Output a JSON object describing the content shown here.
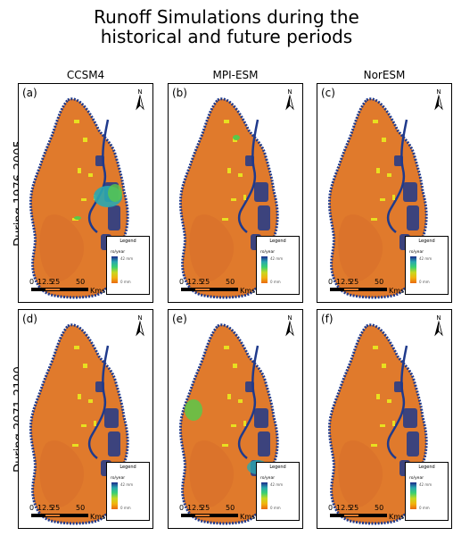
{
  "figure": {
    "title_line1": "Runoff Simulations during the",
    "title_line2": "historical and future periods"
  },
  "columns": [
    "CCSM4",
    "MPI-ESM",
    "NorESM"
  ],
  "rows": [
    "During 1976-2005",
    "During 2071-2100"
  ],
  "panels": [
    {
      "label": "(a)",
      "column": "CCSM4",
      "row": "During 1976-2005"
    },
    {
      "label": "(b)",
      "column": "MPI-ESM",
      "row": "During 1976-2005"
    },
    {
      "label": "(c)",
      "column": "NorESM",
      "row": "During 1976-2005"
    },
    {
      "label": "(d)",
      "column": "CCSM4",
      "row": "During 2071-2100"
    },
    {
      "label": "(e)",
      "column": "MPI-ESM",
      "row": "During 2071-2100"
    },
    {
      "label": "(f)",
      "column": "NorESM",
      "row": "During 2071-2100"
    }
  ],
  "legend": {
    "title": "Legend",
    "unit": "ro/year",
    "high_label": "42 mm",
    "low_label": "0 mm",
    "ramp_colors": [
      "#1a2a8a",
      "#2aa7b0",
      "#3cd070",
      "#c8d820",
      "#f2b20e",
      "#e86a10"
    ]
  },
  "north_arrow": {
    "label": "N"
  },
  "scale_bar": {
    "ticks": [
      "0",
      "12.5",
      "25",
      "50"
    ],
    "unit": "Kms"
  },
  "colors": {
    "land": "#e07a2c",
    "land_shade": "#d2662a",
    "coast": "#1f3a8c",
    "highlight_yellow": "#e8e020",
    "highlight_green": "#5ac84a"
  }
}
